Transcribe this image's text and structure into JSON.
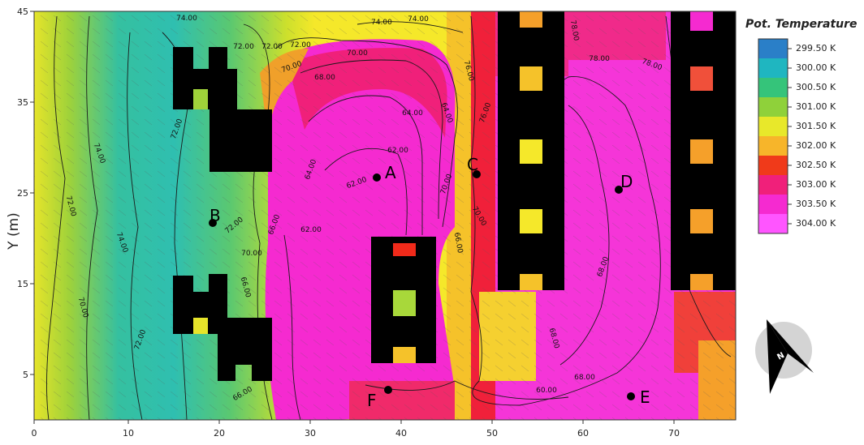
{
  "legend": {
    "title": "Pot. Temperature",
    "labels": [
      "299.50 K",
      "300.00 K",
      "300.50 K",
      "301.00 K",
      "301.50 K",
      "302.00 K",
      "302.50 K",
      "303.00 K",
      "303.50 K",
      "304.00 K"
    ],
    "colors": [
      "#2a7fc8",
      "#1fb6c0",
      "#35c47a",
      "#8fd13a",
      "#e8e82a",
      "#f7b52a",
      "#f03a1a",
      "#f0207a",
      "#f52ad0",
      "#ff55ff"
    ]
  },
  "axes": {
    "ylabel": "Y (m)",
    "xticks": [
      "0",
      "10",
      "20",
      "30",
      "40",
      "50",
      "60",
      "70"
    ],
    "yticks": [
      "45",
      "35",
      "25",
      "15",
      "5"
    ]
  },
  "points": [
    {
      "label": "A"
    },
    {
      "label": "B"
    },
    {
      "label": "C"
    },
    {
      "label": "D"
    },
    {
      "label": "E"
    },
    {
      "label": "F"
    }
  ],
  "contour_labels": [
    "74.00",
    "72.00",
    "70.00",
    "68.00",
    "66.00",
    "64.00",
    "62.00",
    "78.00",
    "76.00",
    "60.00"
  ],
  "compass": {
    "letter": "N",
    "icon": "north-arrow-icon"
  }
}
